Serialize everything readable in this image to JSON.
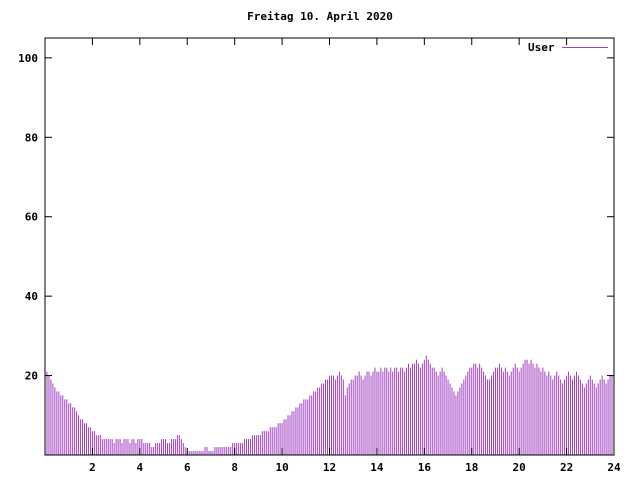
{
  "chart_data": {
    "type": "bar",
    "title": "Freitag 10. April 2020",
    "xlabel": "",
    "ylabel": "",
    "legend_position": "top-right",
    "grid": false,
    "interval_minutes": 5,
    "x_start_hour": 0,
    "x_end_hour": 24,
    "xticks": [
      2,
      4,
      6,
      8,
      10,
      12,
      14,
      16,
      18,
      20,
      22,
      24
    ],
    "yticks": [
      20,
      40,
      60,
      80,
      100
    ],
    "ylim": [
      0,
      105
    ],
    "xlim": [
      0,
      24
    ],
    "colors": {
      "series": "#a040c0",
      "axis": "#000000",
      "text": "#000000",
      "background": "#ffffff"
    },
    "series": [
      {
        "name": "User",
        "values": [
          21,
          20,
          19,
          18,
          17,
          16,
          16,
          15,
          15,
          14,
          14,
          13,
          13,
          12,
          12,
          11,
          10,
          9,
          9,
          8,
          8,
          7,
          7,
          6,
          6,
          5,
          5,
          5,
          4,
          4,
          4,
          4,
          4,
          4,
          3,
          4,
          4,
          4,
          3,
          4,
          4,
          4,
          3,
          4,
          4,
          3,
          4,
          4,
          4,
          3,
          3,
          3,
          3,
          2,
          2,
          3,
          3,
          3,
          4,
          4,
          4,
          3,
          3,
          4,
          4,
          4,
          5,
          5,
          4,
          3,
          2,
          1,
          1,
          1,
          1,
          1,
          1,
          1,
          1,
          1,
          2,
          2,
          1,
          1,
          1,
          2,
          2,
          2,
          2,
          2,
          2,
          2,
          2,
          2,
          3,
          3,
          3,
          3,
          3,
          3,
          4,
          4,
          4,
          4,
          5,
          5,
          5,
          5,
          5,
          6,
          6,
          6,
          6,
          7,
          7,
          7,
          7,
          8,
          8,
          8,
          9,
          9,
          10,
          10,
          11,
          11,
          12,
          12,
          13,
          13,
          14,
          14,
          14,
          15,
          15,
          16,
          16,
          17,
          17,
          18,
          18,
          19,
          19,
          20,
          20,
          20,
          19,
          20,
          21,
          20,
          19,
          15,
          17,
          18,
          19,
          19,
          20,
          20,
          21,
          20,
          19,
          20,
          21,
          21,
          20,
          21,
          22,
          21,
          21,
          22,
          21,
          22,
          22,
          21,
          22,
          21,
          22,
          22,
          21,
          22,
          22,
          21,
          22,
          23,
          22,
          23,
          23,
          24,
          23,
          22,
          23,
          24,
          25,
          24,
          23,
          22,
          22,
          21,
          20,
          21,
          22,
          21,
          20,
          19,
          18,
          17,
          16,
          15,
          16,
          17,
          18,
          19,
          20,
          21,
          22,
          22,
          23,
          23,
          22,
          23,
          22,
          21,
          20,
          19,
          19,
          20,
          21,
          22,
          22,
          23,
          22,
          21,
          22,
          21,
          20,
          21,
          22,
          23,
          22,
          21,
          22,
          23,
          24,
          24,
          23,
          24,
          23,
          22,
          23,
          22,
          21,
          22,
          21,
          20,
          21,
          20,
          19,
          20,
          21,
          20,
          19,
          18,
          19,
          20,
          21,
          20,
          19,
          20,
          21,
          20,
          19,
          18,
          17,
          18,
          19,
          20,
          19,
          18,
          17,
          18,
          19,
          20,
          19,
          18,
          19,
          20,
          20,
          21
        ]
      }
    ]
  }
}
